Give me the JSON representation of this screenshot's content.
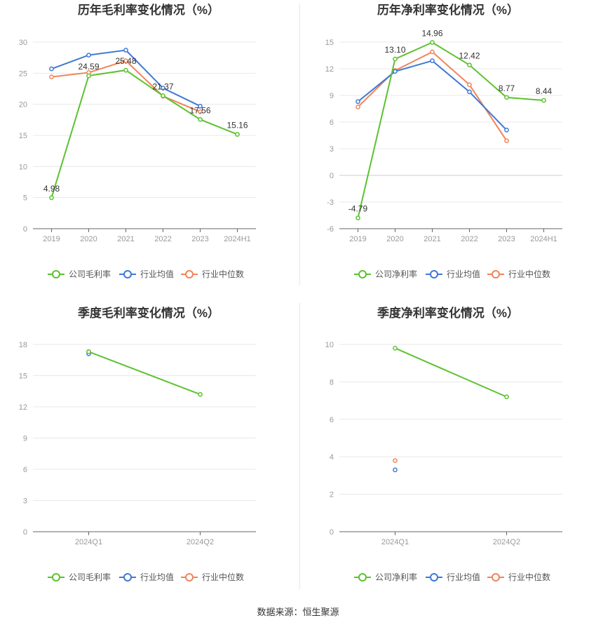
{
  "colors": {
    "company": "#5cc22f",
    "average": "#3f78d6",
    "median": "#f0845a",
    "grid": "#e8e8e8",
    "axis": "#999999",
    "title": "#333333"
  },
  "legend": {
    "gross_company": "公司毛利率",
    "net_company": "公司净利率",
    "average": "行业均值",
    "median": "行业中位数"
  },
  "source": "数据来源：恒生聚源",
  "chart_data": [
    {
      "type": "line",
      "title": "历年毛利率变化情况（%）",
      "categories": [
        "2019",
        "2020",
        "2021",
        "2022",
        "2023",
        "2024H1"
      ],
      "ylim": [
        0,
        30
      ],
      "yticks": [
        0,
        5,
        10,
        15,
        20,
        25,
        30
      ],
      "series": [
        {
          "name": "公司毛利率",
          "values": [
            4.98,
            24.59,
            25.48,
            21.37,
            17.56,
            15.16
          ],
          "labels": true
        },
        {
          "name": "行业均值",
          "values": [
            25.7,
            27.9,
            28.7,
            22.6,
            19.7,
            null
          ],
          "labels": false
        },
        {
          "name": "行业中位数",
          "values": [
            24.4,
            25.1,
            27.0,
            21.3,
            18.8,
            null
          ],
          "labels": false
        }
      ],
      "legend_position": "bottom",
      "grid": true
    },
    {
      "type": "line",
      "title": "历年净利率变化情况（%）",
      "categories": [
        "2019",
        "2020",
        "2021",
        "2022",
        "2023",
        "2024H1"
      ],
      "ylim": [
        -6,
        15
      ],
      "yticks": [
        -6,
        -3,
        0,
        3,
        6,
        9,
        12,
        15
      ],
      "series": [
        {
          "name": "公司净利率",
          "values": [
            -4.79,
            13.1,
            14.96,
            12.42,
            8.77,
            8.44
          ],
          "labels": true
        },
        {
          "name": "行业均值",
          "values": [
            8.3,
            11.7,
            12.9,
            9.4,
            5.1,
            null
          ],
          "labels": false
        },
        {
          "name": "行业中位数",
          "values": [
            7.7,
            11.8,
            13.9,
            10.2,
            3.9,
            null
          ],
          "labels": false
        }
      ],
      "legend_position": "bottom",
      "grid": true
    },
    {
      "type": "line",
      "title": "季度毛利率变化情况（%）",
      "categories": [
        "2024Q1",
        "2024Q2"
      ],
      "ylim": [
        0,
        18
      ],
      "yticks": [
        0,
        3,
        6,
        9,
        12,
        15,
        18
      ],
      "series": [
        {
          "name": "公司毛利率",
          "values": [
            17.3,
            13.2
          ],
          "labels": false
        },
        {
          "name": "行业均值",
          "values": [
            17.1,
            null
          ],
          "labels": false
        },
        {
          "name": "行业中位数",
          "values": [
            17.3,
            null
          ],
          "labels": false
        }
      ],
      "legend_position": "bottom",
      "grid": true
    },
    {
      "type": "line",
      "title": "季度净利率变化情况（%）",
      "categories": [
        "2024Q1",
        "2024Q2"
      ],
      "ylim": [
        0,
        10
      ],
      "yticks": [
        0,
        2,
        4,
        6,
        8,
        10
      ],
      "series": [
        {
          "name": "公司净利率",
          "values": [
            9.8,
            7.2
          ],
          "labels": false
        },
        {
          "name": "行业均值",
          "values": [
            3.3,
            null
          ],
          "labels": false
        },
        {
          "name": "行业中位数",
          "values": [
            3.8,
            null
          ],
          "labels": false
        }
      ],
      "legend_position": "bottom",
      "grid": true
    }
  ]
}
